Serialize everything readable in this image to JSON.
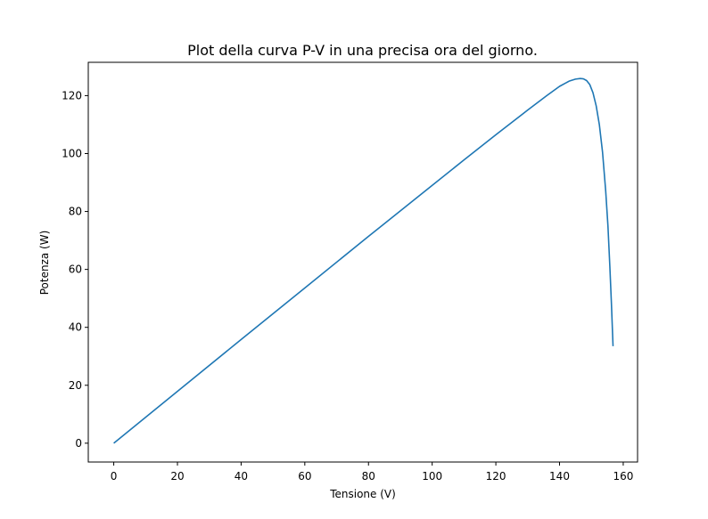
{
  "chart_data": {
    "type": "line",
    "title": "Plot della curva P-V in una precisa ora del giorno.",
    "xlabel": "Tensione (V)",
    "ylabel": "Potenza (W)",
    "xlim": [
      -8,
      164.5
    ],
    "ylim": [
      -6.5,
      131.5
    ],
    "xticks": [
      0,
      20,
      40,
      60,
      80,
      100,
      120,
      140,
      160
    ],
    "yticks": [
      0,
      20,
      40,
      60,
      80,
      100,
      120
    ],
    "xtick_labels": [
      "0",
      "20",
      "40",
      "60",
      "80",
      "100",
      "120",
      "140",
      "160"
    ],
    "ytick_labels": [
      "0",
      "20",
      "40",
      "60",
      "80",
      "100",
      "120"
    ],
    "grid": false,
    "series": [
      {
        "color": "#1f77b4",
        "x": [
          0,
          20,
          40,
          60,
          80,
          100,
          110,
          120,
          130,
          136,
          140,
          143,
          145,
          146.5,
          147.5,
          148.5,
          149.5,
          150.5,
          151.5,
          152.5,
          153.5,
          154.5,
          155.2,
          155.8,
          156.3,
          156.8
        ],
        "y": [
          0,
          17.9,
          35.8,
          53.6,
          71.4,
          89.0,
          97.8,
          106.5,
          115.0,
          120.0,
          123.2,
          125.0,
          125.7,
          125.9,
          125.8,
          125.2,
          123.8,
          121.0,
          116.5,
          110.0,
          100.5,
          87.0,
          75.0,
          61.0,
          48.0,
          33.5
        ]
      }
    ]
  }
}
